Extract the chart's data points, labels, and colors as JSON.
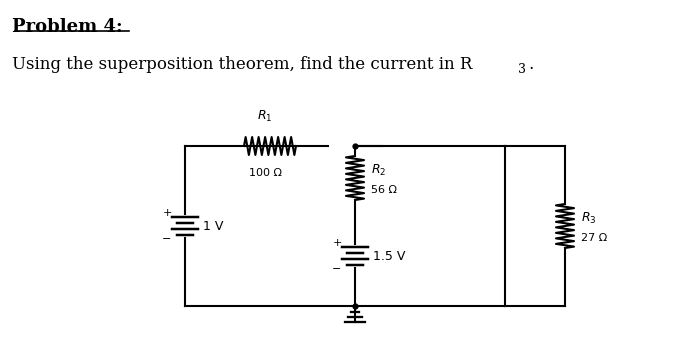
{
  "title_line1": "Problem 4:",
  "title_line2": "Using the superposition theorem, find the current in R",
  "title_sub": "3",
  "title_suffix": ".",
  "bg_color": "#ffffff",
  "line_color": "#000000",
  "font_size_title": 15,
  "font_size_body": 14,
  "font_size_label": 10,
  "R1_label": "R",
  "R1_sub": "1",
  "R1_val": "100 Ω",
  "R2_label": "R",
  "R2_sub": "2",
  "R2_val": "56 Ω",
  "R3_label": "R",
  "R3_sub": "3",
  "R3_val": "27 Ω",
  "V1_val": "1 V",
  "V2_val": "1.5 V"
}
